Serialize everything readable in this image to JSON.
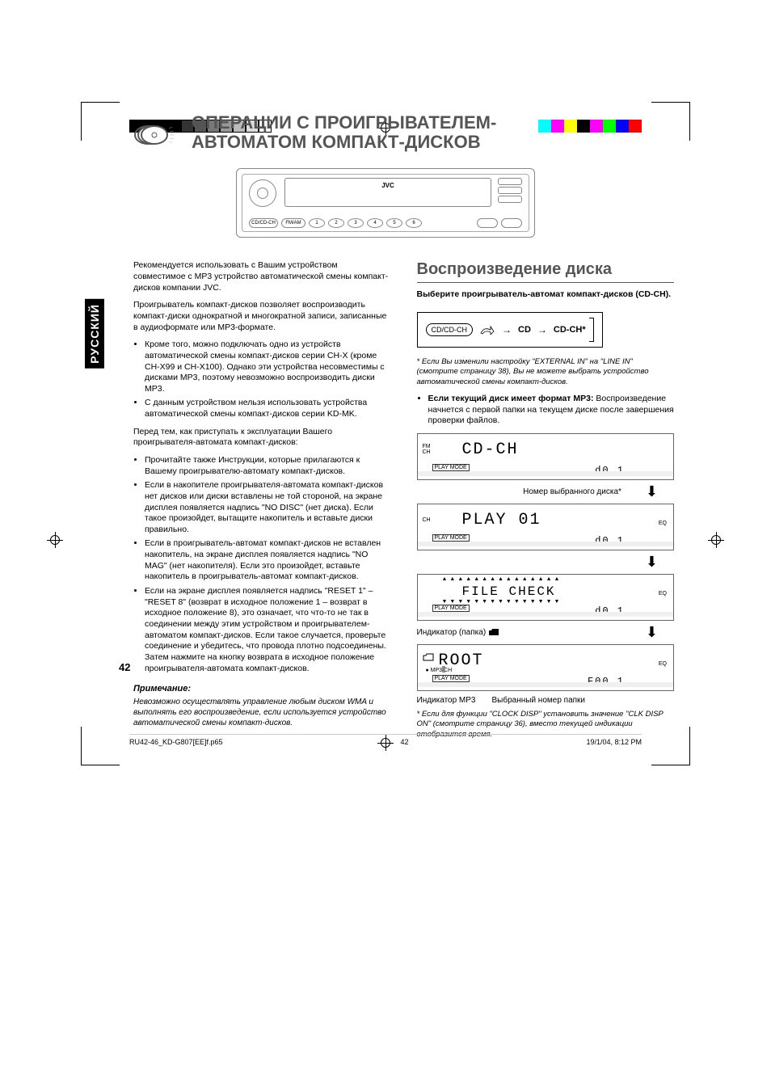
{
  "lang_tab": "РУССКИЙ",
  "title_line1": "ОПЕРАЦИИ С ПРОИГРЫВАТЕЛЕМ-",
  "title_line2": "АВТОМАТОМ КОМПАКТ-ДИСКОВ",
  "mp3_label": "MP3",
  "device": {
    "brand": "JVC",
    "src_btn": "CD/CD-CH",
    "fm_btn": "FM/AM"
  },
  "left": {
    "p1": "Рекомендуется использовать с Вашим устройством совместимое с MP3 устройство автоматической смены компакт-дисков компании JVC.",
    "p2": "Проигрыватель компакт-дисков позволяет воспроизводить компакт-диски однократной и многократной записи, записанные в аудиоформате или MP3-формате.",
    "b1": "Кроме того, можно подключать одно из устройств автоматической смены компакт-дисков серии CH-X (кроме CH-X99 и CH-X100). Однако эти устройства несовместимы с дисками MP3, поэтому невозможно воспроизводить диски MP3.",
    "b2": "С данным устройством нельзя использовать устройства автоматической смены компакт-дисков серии KD-MK.",
    "p3": "Перед тем, как приступать к эксплуатации Вашего проигрывателя-автомата компакт-дисков:",
    "b3": "Прочитайте также Инструкции, которые прилагаются к Вашему проигрывателю-автомату компакт-дисков.",
    "b4": "Если в накопителе проигрывателя-автомата компакт-дисков нет дисков или диски вставлены не той стороной, на экране дисплея появляется надпись \"NO DISC\" (нет диска). Если такое произойдет, вытащите накопитель и вставьте диски правильно.",
    "b5": "Если в проигрыватель-автомат компакт-дисков не вставлен накопитель, на экране дисплея появляется надпись \"NO MAG\" (нет накопителя). Если это произойдет, вставьте накопитель в проигрыватель-автомат компакт-дисков.",
    "b6": "Если на экране дисплея появляется надпись \"RESET 1\" – \"RESET 8\" (возврат в исходное положение 1 – возврат в исходное положение 8), это означает, что что-то не так в соединении между этим устройством и проигрывателем-автоматом компакт-дисков. Если такое случается, проверьте соединение и убедитесь, что провода плотно подсоединены. Затем нажмите на кнопку возврата в исходное положение проигрывателя-автомата компакт-дисков.",
    "note_title": "Примечание:",
    "note_text": "Невозможно осуществлять управление любым диском WMA и выполнять его воспроизведение, если используется устройство автоматической смены компакт-дисков."
  },
  "right": {
    "heading": "Воспроизведение диска",
    "instruction": "Выберите проигрыватель-автомат компакт-дисков (CD-CH).",
    "flow": {
      "btn": "CD/CD-CH",
      "opt1": "CD",
      "opt2": "CD-CH*"
    },
    "foot1": "Если Вы изменили настройку \"EXTERNAL IN\" на \"LINE IN\" (смотрите страницу 38), Вы не можете выбрать устройство автоматической смены компакт-дисков.",
    "mp3_bold": "Если текущий диск имеет формат MP3:",
    "mp3_text": " Воспроизведение начнется с первой папки на текущем диске после завершения проверки файлов.",
    "screens": {
      "s1_main": "CD-CH",
      "s1_sub": "d0 1",
      "cap1": "Номер выбранного диска*",
      "s2_main": "PLAY   01",
      "s2_sub": "d0 1",
      "s3_main": "FILE CHECK",
      "s3_sub": "d0 1",
      "cap3": "Индикатор        (папка)",
      "s4_main": "ROOT",
      "s4_sub": "F00 1",
      "cap4a": "Индикатор MP3",
      "cap4b": "Выбранный номер папки"
    },
    "foot2": "Если для функции \"CLOCK DISP\" установить значение \"CLK DISP ON\" (смотрите страницу 36), вместо текущей индикации отобразится время."
  },
  "page_number": "42",
  "footer": {
    "file": "RU42-46_KD-G807[EE]f.p65",
    "page": "42",
    "date": "19/1/04, 8:12 PM"
  },
  "colors": {
    "colorbar_left": [
      "#000",
      "#000",
      "#000",
      "#000",
      "#333",
      "#555",
      "#777",
      "#999",
      "#bbb",
      "#ddd",
      "#fff"
    ],
    "colorbar_right": [
      "#0ff",
      "#f0f",
      "#ff0",
      "#000",
      "#f0f",
      "#0f0",
      "#00f",
      "#f00"
    ]
  }
}
